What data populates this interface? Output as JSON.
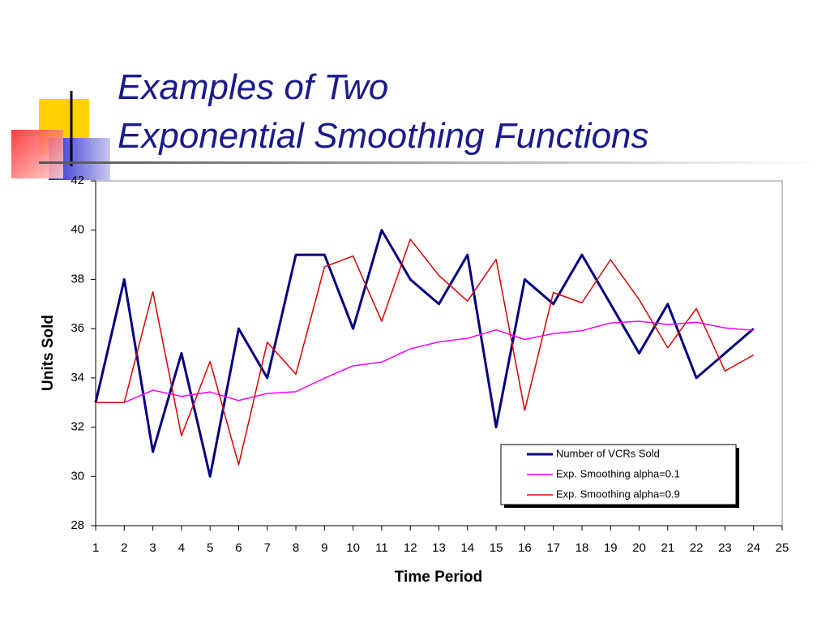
{
  "chart_data": {
    "type": "line",
    "title": [
      "Examples of Two",
      "Exponential Smoothing Functions"
    ],
    "x_label": "Time Period",
    "y_label": "Units Sold",
    "x": [
      1,
      2,
      3,
      4,
      5,
      6,
      7,
      8,
      9,
      10,
      11,
      12,
      13,
      14,
      15,
      16,
      17,
      18,
      19,
      20,
      21,
      22,
      23,
      24
    ],
    "series": [
      {
        "name": "Number of VCRs Sold",
        "color": "#000080",
        "width": 3,
        "values": [
          33,
          38,
          31,
          35,
          30,
          36,
          34,
          39,
          39,
          36,
          40,
          38,
          37,
          39,
          32,
          38,
          37,
          39,
          37,
          35,
          37,
          34,
          35,
          36
        ]
      },
      {
        "name": "Exp. Smoothing alpha=0.1",
        "color": "#ff00ff",
        "width": 1.5,
        "values": [
          33,
          33,
          33.5,
          33.25,
          33.43,
          33.08,
          33.37,
          33.44,
          33.99,
          34.49,
          34.64,
          35.18,
          35.46,
          35.61,
          35.95,
          35.56,
          35.8,
          35.92,
          36.23,
          36.3,
          36.17,
          36.26,
          36.03,
          35.93
        ]
      },
      {
        "name": "Exp. Smoothing alpha=0.9",
        "color": "#dd0000",
        "width": 1.5,
        "values": [
          33,
          33,
          37.5,
          31.65,
          34.67,
          30.47,
          35.45,
          34.15,
          38.51,
          38.95,
          36.3,
          39.63,
          38.16,
          37.12,
          38.81,
          32.68,
          37.47,
          37.05,
          38.8,
          37.18,
          35.22,
          36.82,
          34.28,
          34.93
        ]
      }
    ],
    "xlim": [
      1,
      25
    ],
    "xticks": [
      1,
      2,
      3,
      4,
      5,
      6,
      7,
      8,
      9,
      10,
      11,
      12,
      13,
      14,
      15,
      16,
      17,
      18,
      19,
      20,
      21,
      22,
      23,
      24,
      25
    ],
    "ylim": [
      28,
      42
    ],
    "yticks": [
      28,
      30,
      32,
      34,
      36,
      38,
      40,
      42
    ],
    "grid": false,
    "legend": "lower right"
  }
}
